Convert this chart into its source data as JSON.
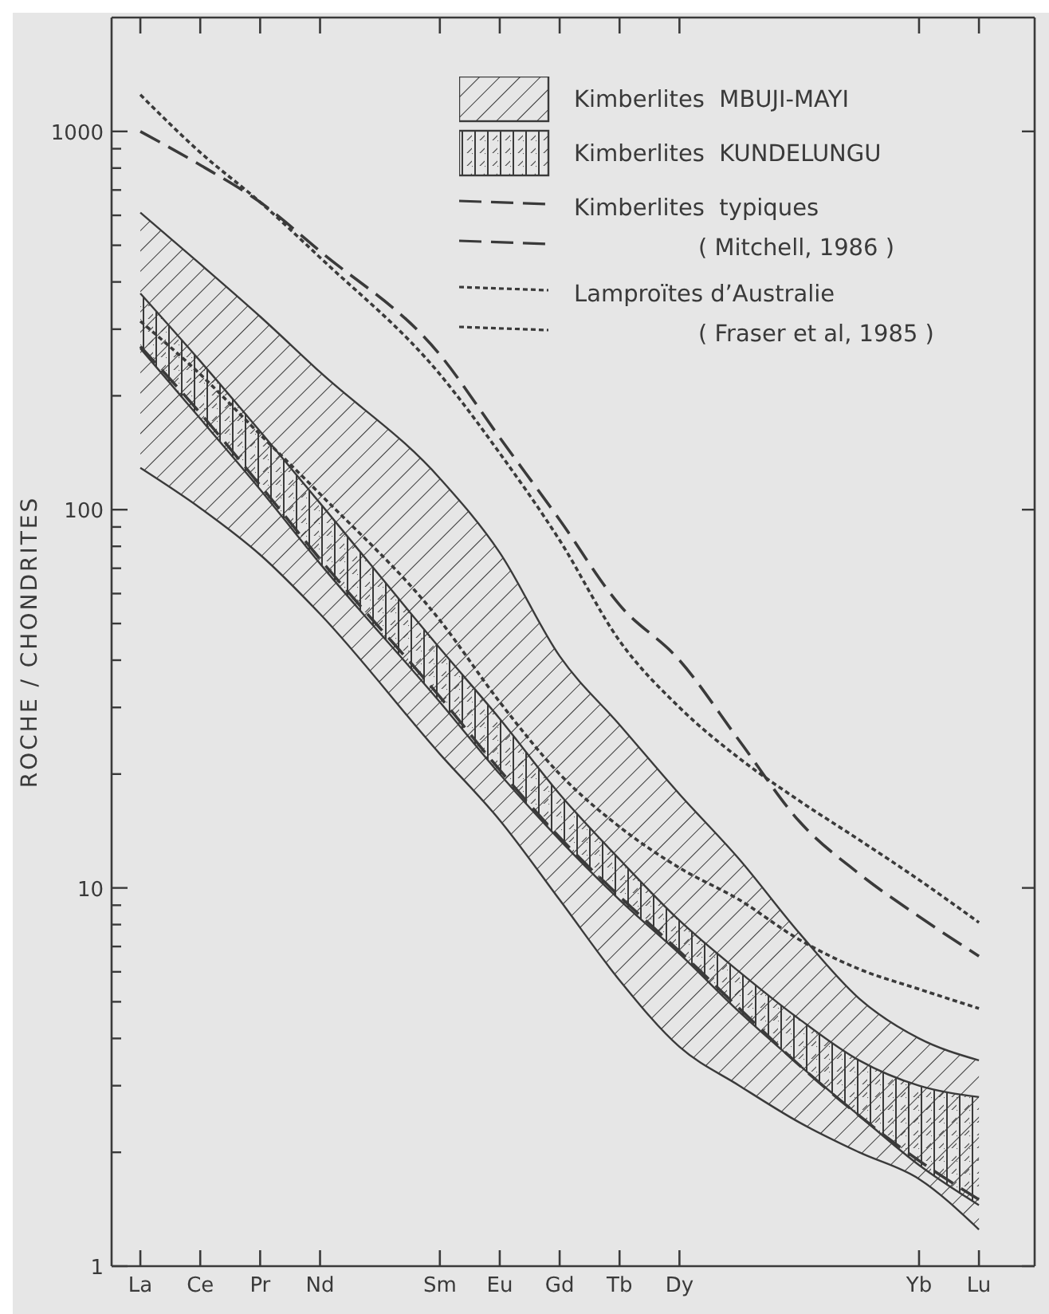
{
  "chart_data": {
    "type": "line",
    "ylabel": "ROCHE / CHONDRITES",
    "log": true,
    "legend": "top right",
    "categories": [
      "La",
      "Ce",
      "Pr",
      "Nd",
      null,
      "Sm",
      "Eu",
      "Gd",
      "Tb",
      "Dy",
      null,
      null,
      null,
      "Yb",
      "Lu"
    ],
    "ylim": [
      1,
      2000
    ],
    "yticks": [
      1,
      {
        "value": 2,
        "label": null
      },
      {
        "value": 3,
        "label": null
      },
      {
        "value": 4,
        "label": null
      },
      {
        "value": 5,
        "label": null
      },
      {
        "value": 6,
        "label": null
      },
      {
        "value": 7,
        "label": null
      },
      {
        "value": 8,
        "label": null
      },
      {
        "value": 9,
        "label": null
      },
      10,
      {
        "value": 20,
        "label": null
      },
      {
        "value": 30,
        "label": null
      },
      {
        "value": 40,
        "label": null
      },
      {
        "value": 50,
        "label": null
      },
      {
        "value": 60,
        "label": null
      },
      {
        "value": 70,
        "label": null
      },
      {
        "value": 80,
        "label": null
      },
      {
        "value": 90,
        "label": null
      },
      100,
      {
        "value": 200,
        "label": null
      },
      {
        "value": 300,
        "label": null
      },
      {
        "value": 400,
        "label": null
      },
      {
        "value": 500,
        "label": null
      },
      {
        "value": 600,
        "label": null
      },
      {
        "value": 700,
        "label": null
      },
      {
        "value": 800,
        "label": null
      },
      {
        "value": 900,
        "label": null
      },
      1000
    ],
    "series": [
      {
        "type": "area",
        "name": "Kimberlites  MBUJI-MAYI",
        "color": "#3a3a3a",
        "values": [
          610,
          446,
          324,
          231,
          null,
          121,
          77,
          41,
          27,
          17.7,
          11.9,
          7.6,
          5.1,
          4.0,
          3.5
        ]
      },
      {
        "type": "line",
        "color": "#3a3a3a",
        "line_style": "solid",
        "values": [
          129,
          101,
          76,
          53,
          null,
          22.6,
          15.1,
          9.3,
          5.7,
          3.8,
          3.0,
          2.4,
          2.0,
          1.7,
          1.25
        ]
      },
      {
        "type": "area",
        "name": "Kimberlites  KUNDELUNGU",
        "color": "#3a3a3a",
        "values": [
          373,
          247,
          161,
          104,
          null,
          43,
          28,
          17.7,
          11.9,
          8.2,
          6.0,
          4.5,
          3.5,
          3.0,
          2.8
        ]
      },
      {
        "type": "line",
        "color": "#3a3a3a",
        "line_style": "solid",
        "values": [
          267,
          174,
          113,
          72,
          null,
          31,
          20,
          13.4,
          9.3,
          6.7,
          4.7,
          3.4,
          2.5,
          1.85,
          1.45
        ]
      },
      {
        "type": "line",
        "name": "Kimberlites  typiques\n( Mitchell, 1986 )",
        "color": "#3a3a3a",
        "line_style": "dashed",
        "values": [
          1000,
          815,
          650,
          482,
          null,
          257,
          155,
          94,
          56,
          40,
          24.5,
          15,
          10.9,
          8.4,
          6.6
        ]
      },
      {
        "type": "line",
        "color": "#3a3a3a",
        "line_style": "dashed",
        "values": [
          270,
          180,
          116,
          74,
          null,
          32,
          20.5,
          13.6,
          9.5,
          6.8,
          4.8,
          3.4,
          2.5,
          1.9,
          1.5
        ]
      },
      {
        "type": "line",
        "name": "Lamproïtes d’Australie\n( Fraser et al, 1985 )",
        "color": "#3a3a3a",
        "line_style": "dotted",
        "values": [
          1250,
          880,
          650,
          464,
          null,
          228,
          141,
          83,
          45,
          30,
          22,
          17,
          13.4,
          10.5,
          8.1
        ]
      },
      {
        "type": "line",
        "color": "#3a3a3a",
        "line_style": "dotted",
        "values": [
          315,
          228,
          158,
          110,
          null,
          51,
          31,
          20,
          14.5,
          11.3,
          9.3,
          7.3,
          6.1,
          5.4,
          4.8
        ]
      }
    ]
  }
}
